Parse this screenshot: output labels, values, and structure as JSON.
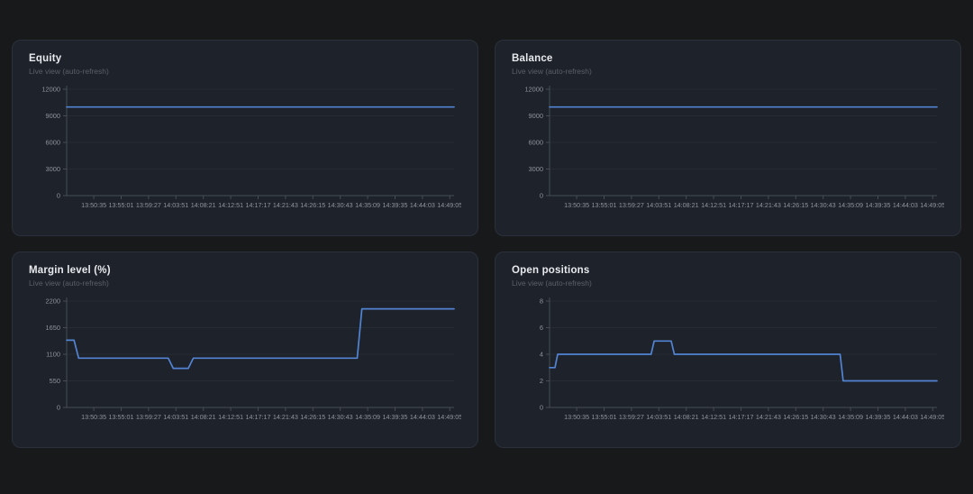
{
  "page": {
    "background": "#18191b"
  },
  "style": {
    "panel_background": "#1e222a",
    "panel_border": "#2b303a",
    "title_color": "#e8eaee",
    "subtitle_color": "#596069",
    "line": "#5284d2",
    "grid": "#262c34",
    "axis": "#474d55",
    "tick_label": "#8e949d"
  },
  "chart_data": [
    {
      "id": "equity",
      "type": "line",
      "title": "Equity",
      "subtitle": "Live view (auto-refresh)",
      "ylim": [
        0,
        12000
      ],
      "yticks": [
        0,
        3000,
        6000,
        9000,
        12000
      ],
      "xticks": [
        "13:50:35",
        "13:55:01",
        "13:59:27",
        "14:03:51",
        "14:08:21",
        "14:12:51",
        "14:17:17",
        "14:21:43",
        "14:26:15",
        "14:30:43",
        "14:35:09",
        "14:39:35",
        "14:44:03",
        "14:49:05"
      ],
      "grid": true,
      "legend": "none",
      "series": [
        {
          "name": "equity",
          "color": "#5284d2",
          "points_xfrac_value": [
            [
              0,
              10000
            ],
            [
              1,
              10000
            ]
          ]
        }
      ]
    },
    {
      "id": "balance",
      "type": "line",
      "title": "Balance",
      "subtitle": "Live view (auto-refresh)",
      "ylim": [
        0,
        12000
      ],
      "yticks": [
        0,
        3000,
        6000,
        9000,
        12000
      ],
      "xticks": [
        "13:50:35",
        "13:55:01",
        "13:59:27",
        "14:03:51",
        "14:08:21",
        "14:12:51",
        "14:17:17",
        "14:21:43",
        "14:26:15",
        "14:30:43",
        "14:35:09",
        "14:39:35",
        "14:44:03",
        "14:49:05"
      ],
      "grid": true,
      "legend": "none",
      "series": [
        {
          "name": "balance",
          "color": "#5284d2",
          "points_xfrac_value": [
            [
              0,
              10000
            ],
            [
              1,
              10000
            ]
          ]
        }
      ]
    },
    {
      "id": "margin-level",
      "type": "line",
      "title": "Margin level (%)",
      "subtitle": "Live view (auto-refresh)",
      "ylim": [
        0,
        2200
      ],
      "yticks": [
        0,
        550,
        1100,
        1650,
        2200
      ],
      "xticks": [
        "13:50:35",
        "13:55:01",
        "13:59:27",
        "14:03:51",
        "14:08:21",
        "14:12:51",
        "14:17:17",
        "14:21:43",
        "14:26:15",
        "14:30:43",
        "14:35:09",
        "14:39:35",
        "14:44:03",
        "14:49:05"
      ],
      "grid": true,
      "legend": "none",
      "series": [
        {
          "name": "margin_level_pct",
          "color": "#5284d2",
          "points_xfrac_value": [
            [
              0,
              1390
            ],
            [
              0.019,
              1390
            ],
            [
              0.031,
              1020
            ],
            [
              0.262,
              1020
            ],
            [
              0.275,
              810
            ],
            [
              0.314,
              810
            ],
            [
              0.327,
              1020
            ],
            [
              0.75,
              1020
            ],
            [
              0.762,
              2040
            ],
            [
              1,
              2040
            ]
          ]
        }
      ]
    },
    {
      "id": "open-positions",
      "type": "line",
      "title": "Open positions",
      "subtitle": "Live view (auto-refresh)",
      "ylim": [
        0,
        8
      ],
      "yticks": [
        0,
        2,
        4,
        6,
        8
      ],
      "xticks": [
        "13:50:35",
        "13:55:01",
        "13:59:27",
        "14:03:51",
        "14:08:21",
        "14:12:51",
        "14:17:17",
        "14:21:43",
        "14:26:15",
        "14:30:43",
        "14:35:09",
        "14:39:35",
        "14:44:03",
        "14:49:05"
      ],
      "grid": true,
      "legend": "none",
      "series": [
        {
          "name": "open_positions",
          "color": "#5284d2",
          "points_xfrac_value": [
            [
              0,
              3
            ],
            [
              0.014,
              3
            ],
            [
              0.021,
              4
            ],
            [
              0.262,
              4
            ],
            [
              0.27,
              5
            ],
            [
              0.314,
              5
            ],
            [
              0.322,
              4
            ],
            [
              0.75,
              4
            ],
            [
              0.758,
              2
            ],
            [
              1,
              2
            ]
          ]
        }
      ]
    }
  ]
}
